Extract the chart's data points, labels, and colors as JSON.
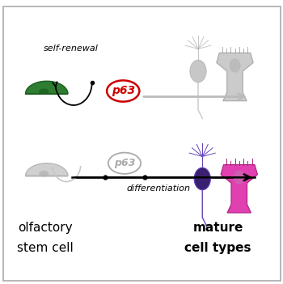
{
  "bg_color": "#ffffff",
  "border_color": "#aaaaaa",
  "top_label": "self-renewal",
  "bottom_label": "differentiation",
  "bottom_left_label1": "olfactory",
  "bottom_left_label2": "stem cell",
  "bottom_right_label1": "mature",
  "bottom_right_label2": "cell types",
  "p63_top_color": "#cc0000",
  "p63_bottom_color": "#aaaaaa",
  "green_cell_color": "#2e7d32",
  "green_cell_dark": "#1b5e20",
  "gray_cell_color": "#c8c8c8",
  "gray_cell_shadow": "#b0b0b0",
  "arrow_top_color": "#bbbbbb",
  "arrow_bottom_color": "#222222",
  "neuron_gray": "#b0b0b0",
  "neuron_gray_dark": "#888888",
  "neuron_purple": "#6644bb",
  "neuron_body_purple": "#3a2070",
  "neuron_pink": "#e040b0",
  "neuron_pink_dark": "#aa2080",
  "neuron_pink_inner": "#cc60b0",
  "font_size_label": 8,
  "font_size_p63": 9,
  "font_size_bottom": 11
}
